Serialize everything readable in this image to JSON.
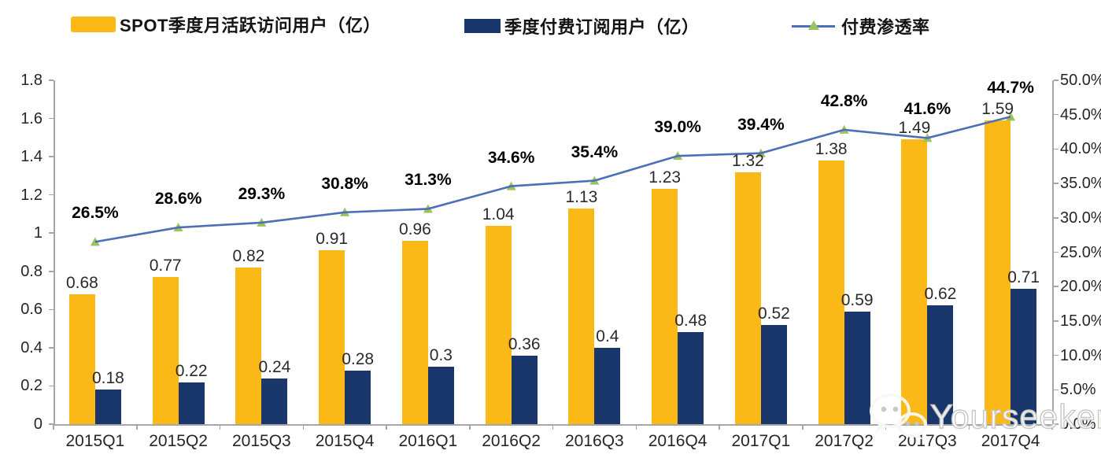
{
  "legend": [
    {
      "label": "SPOT季度月活跃访问用户（亿）",
      "type": "bar",
      "color": "#fbb917"
    },
    {
      "label": "季度付费订阅用户（亿）",
      "type": "bar",
      "color": "#19376b"
    },
    {
      "label": "付费渗透率",
      "type": "line",
      "color": "#4d6fb8",
      "marker_color": "#9cc25c"
    }
  ],
  "chart_data": {
    "type": "bar",
    "subtype": "grouped bars with overlay line",
    "title": "",
    "xlabel": "",
    "ylabel": "",
    "grid": false,
    "legend_position": "top",
    "categories": [
      "2015Q1",
      "2015Q2",
      "2015Q3",
      "2015Q4",
      "2016Q1",
      "2016Q2",
      "2016Q3",
      "2016Q4",
      "2017Q1",
      "2017Q2",
      "2017Q3",
      "2017Q4"
    ],
    "series": [
      {
        "name": "SPOT季度月活跃访问用户（亿）",
        "type": "bar",
        "axis": "left",
        "color": "#fbb917",
        "values": [
          0.68,
          0.77,
          0.82,
          0.91,
          0.96,
          1.04,
          1.13,
          1.23,
          1.32,
          1.38,
          1.49,
          1.59
        ],
        "labels": [
          "0.68",
          "0.77",
          "0.82",
          "0.91",
          "0.96",
          "1.04",
          "1.13",
          "1.23",
          "1.32",
          "1.38",
          "1.49",
          "1.59"
        ]
      },
      {
        "name": "季度付费订阅用户（亿）",
        "type": "bar",
        "axis": "left",
        "color": "#19376b",
        "values": [
          0.18,
          0.22,
          0.24,
          0.28,
          0.3,
          0.36,
          0.4,
          0.48,
          0.52,
          0.59,
          0.62,
          0.71
        ],
        "labels": [
          "0.18",
          "0.22",
          "0.24",
          "0.28",
          "0.3",
          "0.36",
          "0.4",
          "0.48",
          "0.52",
          "0.59",
          "0.62",
          "0.71"
        ]
      },
      {
        "name": "付费渗透率",
        "type": "line",
        "axis": "right",
        "color": "#4d6fb8",
        "marker": "triangle-up",
        "marker_color": "#9cc25c",
        "values": [
          26.5,
          28.6,
          29.3,
          30.8,
          31.3,
          34.6,
          35.4,
          39.0,
          39.4,
          42.8,
          41.6,
          44.7
        ],
        "labels": [
          "26.5%",
          "28.6%",
          "29.3%",
          "30.8%",
          "31.3%",
          "34.6%",
          "35.4%",
          "39.0%",
          "39.4%",
          "42.8%",
          "41.6%",
          "44.7%"
        ]
      }
    ],
    "left_axis": {
      "min": 0,
      "max": 1.8,
      "ticks": [
        "1.8",
        "1.6",
        "1.4",
        "1.2",
        "1",
        "0.8",
        "0.6",
        "0.4",
        "0.2",
        "0"
      ]
    },
    "right_axis": {
      "min": 0,
      "max": 50,
      "ticks": [
        "50.0%",
        "45.0%",
        "40.0%",
        "35.0%",
        "30.0%",
        "25.0%",
        "20.0%",
        "15.0%",
        "10.0%",
        "5.0%",
        "0.0%"
      ]
    },
    "axis_color": "#a6a6a6"
  },
  "watermark": {
    "text": "Yourseeker",
    "icon": "wechat-icon"
  }
}
